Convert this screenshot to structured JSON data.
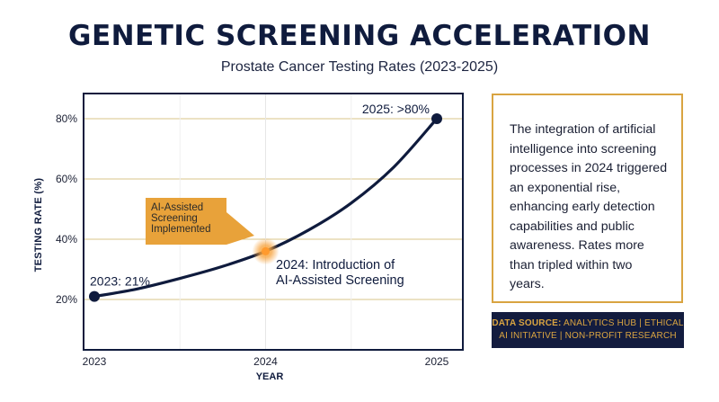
{
  "header": {
    "title": "GENETIC SCREENING ACCELERATION",
    "subtitle": "Prostate Cancer Testing Rates (2023-2025)"
  },
  "chart_data": {
    "type": "line",
    "title": "GENETIC SCREENING ACCELERATION",
    "subtitle": "Prostate Cancer Testing Rates (2023-2025)",
    "xlabel": "YEAR",
    "ylabel": "TESTING RATE (%)",
    "x_ticks": [
      "2023",
      "2024",
      "2025"
    ],
    "y_ticks": [
      "20%",
      "40%",
      "60%",
      "80%"
    ],
    "y_tick_values": [
      20,
      40,
      60,
      80
    ],
    "xlim": [
      2023,
      2025
    ],
    "ylim": [
      16,
      83
    ],
    "grid": "horizontal",
    "series": [
      {
        "name": "",
        "color": "#0f1b3d",
        "points": [
          {
            "x": 2023,
            "y": 21
          },
          {
            "x": 2023.25,
            "y": 23.5
          },
          {
            "x": 2023.5,
            "y": 27
          },
          {
            "x": 2023.75,
            "y": 31
          },
          {
            "x": 2024,
            "y": 36
          },
          {
            "x": 2024.25,
            "y": 43
          },
          {
            "x": 2024.5,
            "y": 52
          },
          {
            "x": 2024.75,
            "y": 64
          },
          {
            "x": 2025,
            "y": 80
          }
        ]
      }
    ],
    "markers": [
      {
        "x": 2023,
        "y": 21,
        "label": "2023: 21%",
        "style": "dot"
      },
      {
        "x": 2024,
        "y": 36,
        "label": "",
        "style": "glow"
      },
      {
        "x": 2025,
        "y": 80,
        "label": "2025: >80%",
        "style": "dot"
      }
    ],
    "annotations": {
      "callout_lines": [
        "AI-Assisted",
        "Screening",
        "Implemented"
      ],
      "callout_color": "#e8a23a",
      "event_lines": [
        "2024: Introduction of",
        "AI-Assisted Screening"
      ]
    },
    "accent_color": "#d9a441"
  },
  "side_panel": {
    "text": "The integration of artificial intelligence into screening processes in 2024 triggered an exponential rise, enhancing early detection capabilities and public awareness. Rates more than tripled within two years."
  },
  "source": {
    "label": "DATA SOURCE:",
    "text": "ANALYTICS HUB | ETHICAL AI INITIATIVE | NON-PROFIT RESEARCH"
  }
}
